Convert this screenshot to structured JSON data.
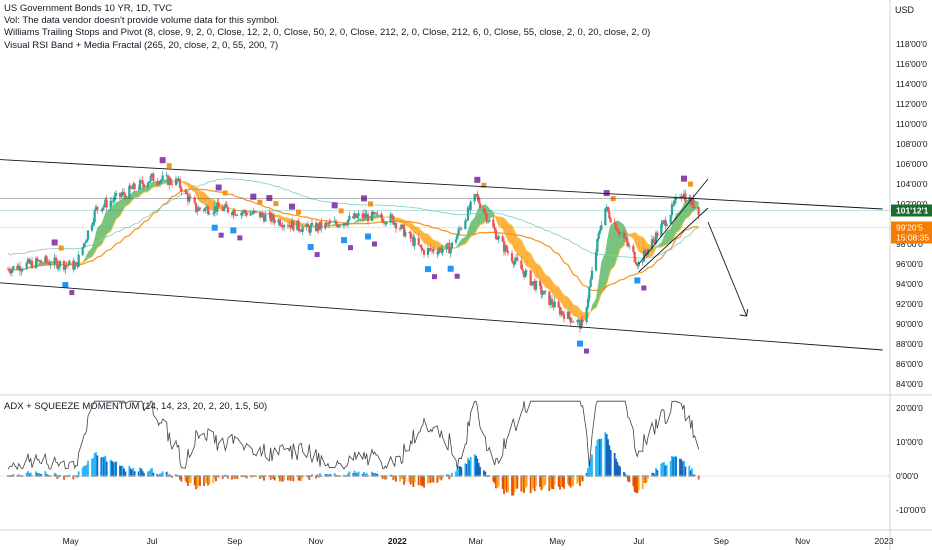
{
  "header": {
    "title": "US Government Bonds 10 YR, 1D, TVC",
    "volume_note": "Vol: The data vendor doesn't provide volume data for this symbol.",
    "indicator_1": "Williams Trailing Stops and Pivot (8, close, 9, 2, 0, Close, 12, 2, 0, Close, 50, 2, 0, Close, 212, 2, 0, Close, 212, 6, 0, Close, 55, close, 2, 0, 20, close, 2, 0)",
    "indicator_2": "Visual RSI Band + Media Fractal (265, 20, close, 2, 0, 55, 200, 7)",
    "currency": "USD"
  },
  "oscillator": {
    "title": "ADX + SQUEEZE MOMENTUM (14, 14, 23, 20, 2, 20, 1.5, 50)",
    "ticks": [
      "20'00'0",
      "10'00'0",
      "0'00'0",
      "-10'00'0"
    ]
  },
  "price_axis": {
    "ticks": [
      "118'00'0",
      "116'00'0",
      "114'00'0",
      "112'00'0",
      "110'00'0",
      "108'00'0",
      "106'00'0",
      "104'00'0",
      "102'00'0",
      "98'00'0",
      "96'00'0",
      "94'00'0",
      "92'00'0",
      "90'00'0",
      "88'00'0",
      "86'00'0",
      "84'00'0"
    ],
    "last_price_label": "101'12'1",
    "ma_label": "99'20'5",
    "countdown_label": "15:08:35"
  },
  "time_axis": {
    "labels": [
      "May",
      "Jul",
      "Sep",
      "Nov",
      "2022",
      "Mar",
      "May",
      "Jul",
      "Sep",
      "Nov",
      "2023"
    ],
    "bold_label": "2022"
  },
  "chart_data": {
    "type": "candlestick",
    "title": "US Government Bonds 10 YR, 1D, TVC",
    "price_range": [
      83,
      121
    ],
    "close_path": [
      {
        "date": "2021-03-15",
        "close": 95.5
      },
      {
        "date": "2021-04-10",
        "close": 96.3
      },
      {
        "date": "2021-05-05",
        "close": 95.8
      },
      {
        "date": "2021-05-20",
        "close": 101.5
      },
      {
        "date": "2021-06-10",
        "close": 103.0
      },
      {
        "date": "2021-07-01",
        "close": 104.6
      },
      {
        "date": "2021-07-20",
        "close": 104.2
      },
      {
        "date": "2021-08-03",
        "close": 101.5
      },
      {
        "date": "2021-08-20",
        "close": 101.6
      },
      {
        "date": "2021-09-20",
        "close": 100.9
      },
      {
        "date": "2021-10-25",
        "close": 99.5
      },
      {
        "date": "2021-11-15",
        "close": 100.0
      },
      {
        "date": "2021-12-05",
        "close": 100.8
      },
      {
        "date": "2021-12-28",
        "close": 100.5
      },
      {
        "date": "2022-01-20",
        "close": 97.3
      },
      {
        "date": "2022-02-10",
        "close": 97.6
      },
      {
        "date": "2022-03-01",
        "close": 102.8
      },
      {
        "date": "2022-03-20",
        "close": 98.0
      },
      {
        "date": "2022-04-10",
        "close": 94.5
      },
      {
        "date": "2022-05-01",
        "close": 91.5
      },
      {
        "date": "2022-05-20",
        "close": 89.8
      },
      {
        "date": "2022-06-05",
        "close": 101.8
      },
      {
        "date": "2022-06-20",
        "close": 98.5
      },
      {
        "date": "2022-07-01",
        "close": 96.0
      },
      {
        "date": "2022-07-25",
        "close": 101.2
      },
      {
        "date": "2022-08-02",
        "close": 103.2
      },
      {
        "date": "2022-08-15",
        "close": 101.4
      }
    ],
    "trendlines": [
      {
        "name": "upper channel",
        "from": {
          "date": "2021-03-01",
          "price": 106.5
        },
        "to": {
          "date": "2022-12-31",
          "price": 101.5
        }
      },
      {
        "name": "lower channel",
        "from": {
          "date": "2021-03-01",
          "price": 94.2
        },
        "to": {
          "date": "2022-12-31",
          "price": 87.4
        }
      }
    ],
    "projection_arrow": {
      "from": {
        "date": "2022-08-22",
        "price": 100.2
      },
      "to": {
        "date": "2022-09-20",
        "price": 90.8
      }
    },
    "colors": {
      "up": "#26a69a",
      "down": "#ef5350",
      "orange": "#f7931a",
      "cloud_green": "#4caf50",
      "cloud_orange": "#ff9800",
      "last_price_bg": "#1e6b2e",
      "ma_bg": "#f57c00"
    }
  }
}
